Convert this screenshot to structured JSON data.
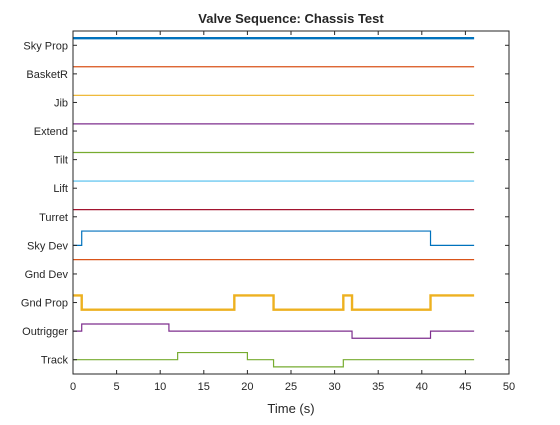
{
  "chart_data": {
    "type": "line",
    "subtype": "stepped-digital-timing",
    "title": "Valve Sequence: Chassis Test",
    "xlabel": "Time (s)",
    "ylabel": "",
    "xlim": [
      0,
      50
    ],
    "xticks": [
      0,
      5,
      10,
      15,
      20,
      25,
      30,
      35,
      40,
      45,
      50
    ],
    "grid": false,
    "legend": "none",
    "series": [
      {
        "name": "Sky Prop",
        "color": "#0072BD",
        "linewidth": "thick",
        "points": [
          [
            0,
            1
          ],
          [
            46,
            1
          ]
        ]
      },
      {
        "name": "BasketR",
        "color": "#D95319",
        "linewidth": "thin",
        "points": [
          [
            0,
            1
          ],
          [
            46,
            1
          ]
        ]
      },
      {
        "name": "Jib",
        "color": "#EDB120",
        "linewidth": "thin",
        "points": [
          [
            0,
            1
          ],
          [
            46,
            1
          ]
        ]
      },
      {
        "name": "Extend",
        "color": "#7E2F8E",
        "linewidth": "thin",
        "points": [
          [
            0,
            1
          ],
          [
            46,
            1
          ]
        ]
      },
      {
        "name": "Tilt",
        "color": "#77AC30",
        "linewidth": "thin",
        "points": [
          [
            0,
            1
          ],
          [
            46,
            1
          ]
        ]
      },
      {
        "name": "Lift",
        "color": "#4DBEEE",
        "linewidth": "thin",
        "points": [
          [
            0,
            1
          ],
          [
            46,
            1
          ]
        ]
      },
      {
        "name": "Turret",
        "color": "#A2142F",
        "linewidth": "thin",
        "points": [
          [
            0,
            1
          ],
          [
            46,
            1
          ]
        ]
      },
      {
        "name": "Sky Dev",
        "color": "#0072BD",
        "linewidth": "thin",
        "points": [
          [
            0,
            0.5
          ],
          [
            1,
            0.5
          ],
          [
            1,
            1.5
          ],
          [
            41,
            1.5
          ],
          [
            41,
            0.5
          ],
          [
            46,
            0.5
          ]
        ]
      },
      {
        "name": "Gnd Dev",
        "color": "#D95319",
        "linewidth": "thin",
        "points": [
          [
            0,
            1.5
          ],
          [
            46,
            1.5
          ]
        ]
      },
      {
        "name": "Gnd Prop",
        "color": "#EDB120",
        "linewidth": "thick",
        "points": [
          [
            0,
            1
          ],
          [
            1,
            1
          ],
          [
            1,
            0
          ],
          [
            18.5,
            0
          ],
          [
            18.5,
            1
          ],
          [
            23,
            1
          ],
          [
            23,
            0
          ],
          [
            31,
            0
          ],
          [
            31,
            1
          ],
          [
            32,
            1
          ],
          [
            32,
            0
          ],
          [
            41,
            0
          ],
          [
            41,
            1
          ],
          [
            46,
            1
          ]
        ]
      },
      {
        "name": "Outrigger",
        "color": "#7E2F8E",
        "linewidth": "thin",
        "points": [
          [
            0,
            0.5
          ],
          [
            1,
            0.5
          ],
          [
            1,
            1
          ],
          [
            11,
            1
          ],
          [
            11,
            0.5
          ],
          [
            32,
            0.5
          ],
          [
            32,
            0
          ],
          [
            41,
            0
          ],
          [
            41,
            0.5
          ],
          [
            46,
            0.5
          ]
        ]
      },
      {
        "name": "Track",
        "color": "#77AC30",
        "linewidth": "thin",
        "points": [
          [
            0,
            0.5
          ],
          [
            12,
            0.5
          ],
          [
            12,
            1
          ],
          [
            20,
            1
          ],
          [
            20,
            0.5
          ],
          [
            23,
            0.5
          ],
          [
            23,
            0
          ],
          [
            31,
            0
          ],
          [
            31,
            0.5
          ],
          [
            46,
            0.5
          ]
        ]
      }
    ]
  }
}
